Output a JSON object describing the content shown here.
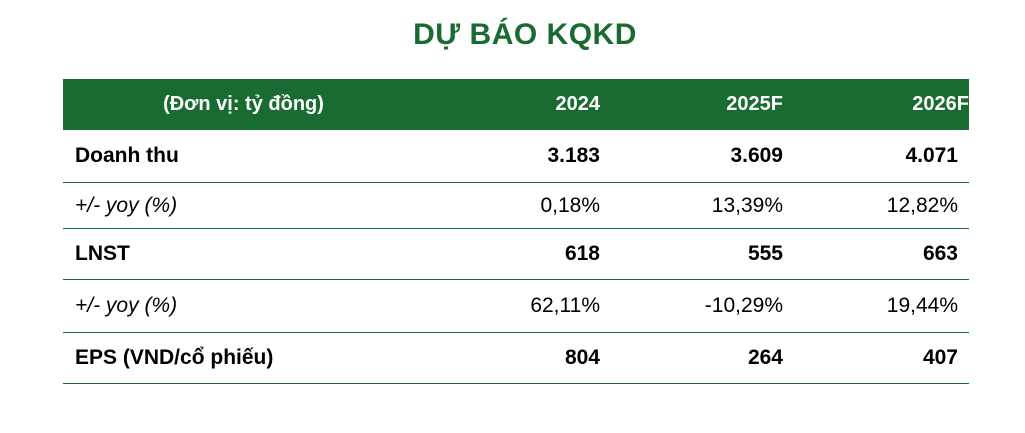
{
  "title": "DỰ BÁO KQKD",
  "colors": {
    "accent": "#1a6b31",
    "header_text": "#ffffff"
  },
  "table": {
    "headers": [
      "(Đơn vị: tỷ đồng)",
      "2024",
      "2025F",
      "2026F"
    ],
    "rows": [
      {
        "label": "Doanh thu",
        "values": [
          "3.183",
          "3.609",
          "4.071"
        ],
        "style": "bold"
      },
      {
        "label": "+/-  yoy (%)",
        "values": [
          "0,18%",
          "13,39%",
          "12,82%"
        ],
        "style": "italic"
      },
      {
        "label": "LNST",
        "values": [
          "618",
          "555",
          "663"
        ],
        "style": "bold"
      },
      {
        "label": "+/-  yoy (%)",
        "values": [
          "62,11%",
          "-10,29%",
          "19,44%"
        ],
        "style": "italic"
      },
      {
        "label": "EPS (VND/cổ phiếu)",
        "values": [
          "804",
          "264",
          "407"
        ],
        "style": "bold"
      }
    ]
  }
}
